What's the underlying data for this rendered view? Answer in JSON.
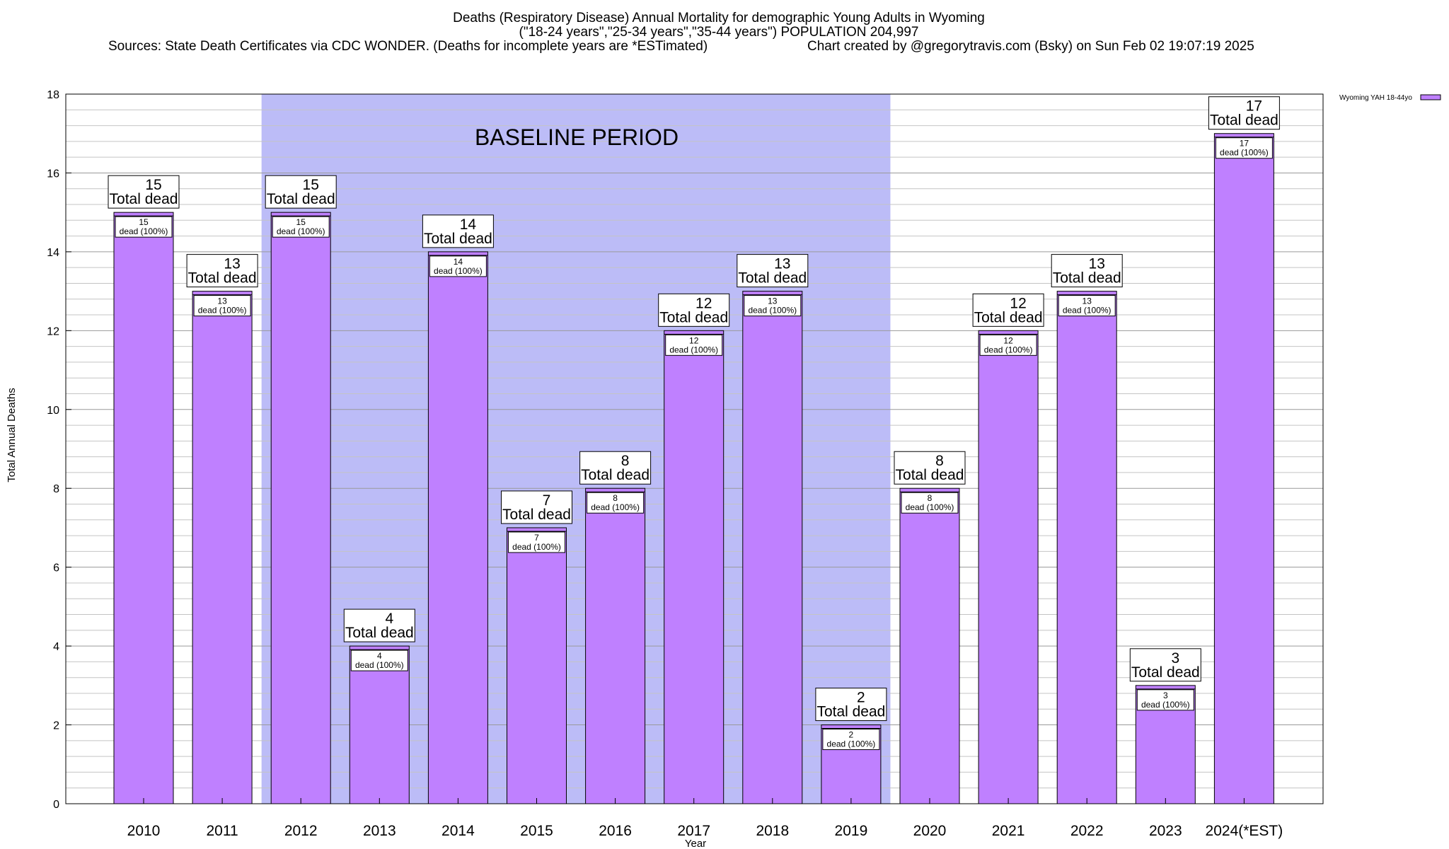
{
  "chart_data": {
    "type": "bar",
    "title": "Deaths (Respiratory Disease) Annual Mortality for demographic Young Adults in Wyoming",
    "subtitle": "(\"18-24 years\",\"25-34 years\",\"35-44 years\") POPULATION 204,997",
    "source": "Sources: State Death Certificates via CDC WONDER. (Deaths for incomplete years are *ESTimated)",
    "credit": "Chart created by @gregorytravis.com (Bsky) on Sun Feb 02 19:07:19 2025",
    "xlabel": "Year",
    "ylabel": "Total Annual Deaths",
    "ylim": [
      0,
      18
    ],
    "yticks": [
      "0",
      "2",
      "4",
      "6",
      "8",
      "10",
      "12",
      "14",
      "16",
      "18"
    ],
    "grid": true,
    "legend_position": "top-right",
    "colors": {
      "bar": "#bf80ff",
      "baseline": "#bcbcf7",
      "bar_edge": "#000000"
    },
    "categories": [
      "2010",
      "2011",
      "2012",
      "2013",
      "2014",
      "2015",
      "2016",
      "2017",
      "2018",
      "2019",
      "2020",
      "2021",
      "2022",
      "2023",
      "2024(*EST)"
    ],
    "series": [
      {
        "name": "Wyoming YAH 18-44yo",
        "values": [
          15,
          13,
          15,
          4,
          14,
          7,
          8,
          12,
          13,
          2,
          8,
          12,
          13,
          3,
          17
        ]
      }
    ],
    "total_labels": [
      "15",
      "13",
      "15",
      "4",
      "14",
      "7",
      "8",
      "12",
      "13",
      "2",
      "8",
      "12",
      "13",
      "3",
      "17"
    ],
    "total_text": "Total dead",
    "inner_labels": [
      "15",
      "13",
      "15",
      "4",
      "14",
      "7",
      "8",
      "12",
      "13",
      "2",
      "8",
      "12",
      "13",
      "3",
      "17"
    ],
    "inner_text": "dead (100%)",
    "annotation": {
      "text": "BASELINE PERIOD",
      "from": "2012",
      "to": "2019"
    }
  }
}
